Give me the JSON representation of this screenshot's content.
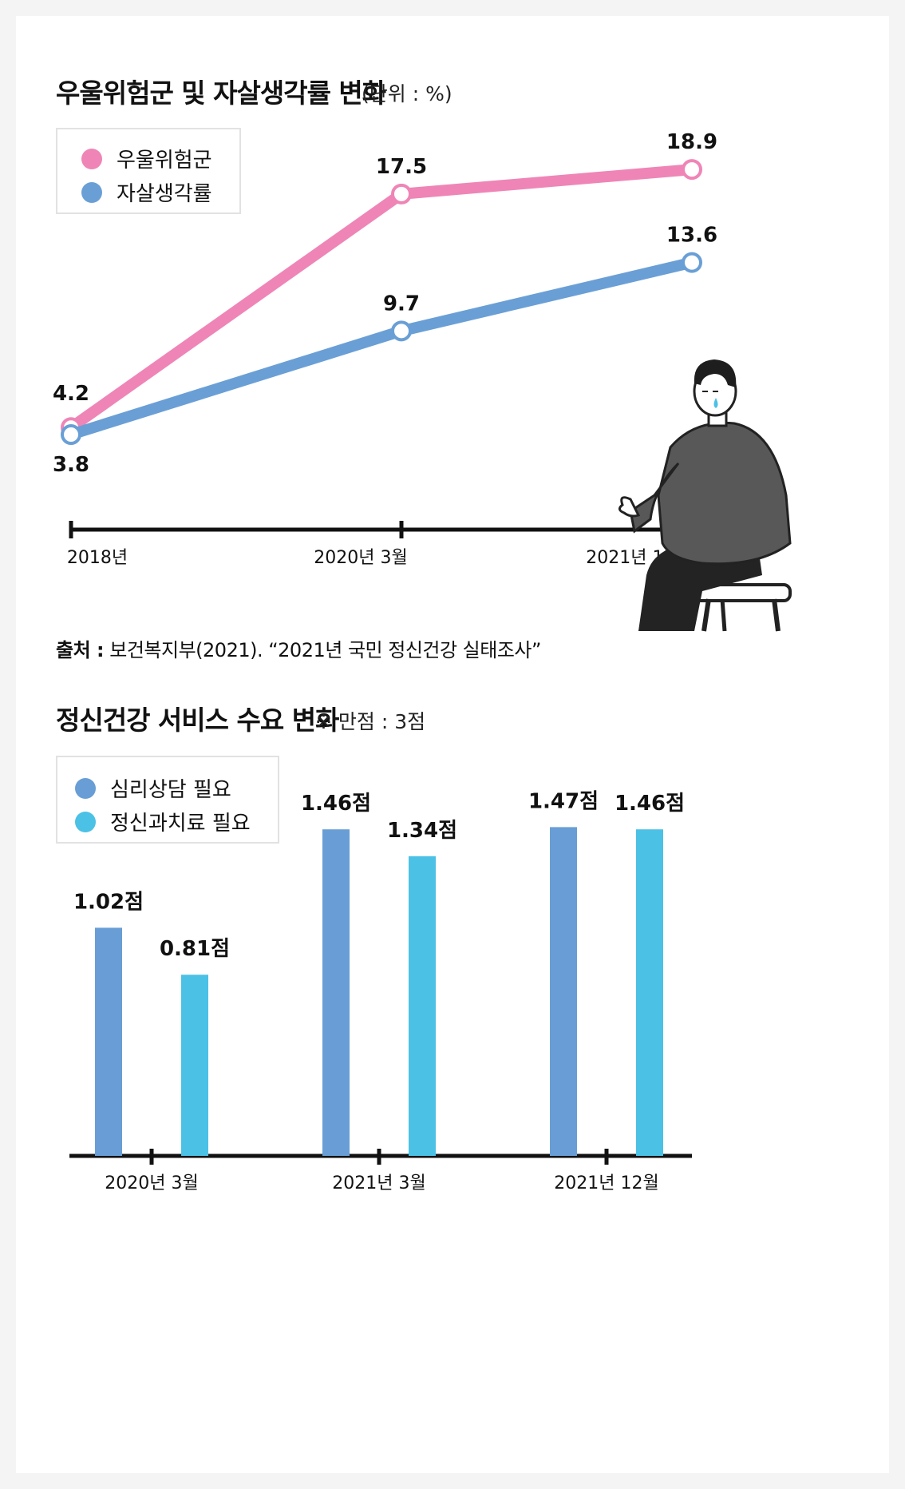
{
  "chart1": {
    "title": "우울위험군 및 자살생각률 변화",
    "unit": "(단위 : %)",
    "legend": [
      {
        "label": "우울위험군",
        "color": "#ef85b6"
      },
      {
        "label": "자살생각률",
        "color": "#6a9fd6"
      }
    ],
    "source_label": "출처 :",
    "source_text": "보건복지부(2021). “2021년 국민 정신건강 실태조사”",
    "illustration": "crying-seated-person"
  },
  "chart2": {
    "title": "정신건강 서비스 수요 변화",
    "unit": "※ 만점 : 3점",
    "legend": [
      {
        "label": "심리상담 필요",
        "color": "#689ed5"
      },
      {
        "label": "정신과치료 필요",
        "color": "#4bc1e6"
      }
    ]
  },
  "chart_data": [
    {
      "type": "line",
      "title": "우울위험군 및 자살생각률 변화",
      "unit": "%",
      "categories": [
        "2018년",
        "2020년 3월",
        "2021년 12월"
      ],
      "series": [
        {
          "name": "우울위험군",
          "values": [
            4.2,
            17.5,
            18.9
          ],
          "labels": [
            "4.2",
            "17.5",
            "18.9"
          ],
          "color": "#ef85b6"
        },
        {
          "name": "자살생각률",
          "values": [
            3.8,
            9.7,
            13.6
          ],
          "labels": [
            "3.8",
            "9.7",
            "13.6"
          ],
          "color": "#6a9fd6"
        }
      ],
      "legend_position": "top-left",
      "grid": false
    },
    {
      "type": "bar",
      "title": "정신건강 서비스 수요 변화",
      "categories": [
        "2020년 3월",
        "2021년 3월",
        "2021년 12월"
      ],
      "series": [
        {
          "name": "심리상담 필요",
          "values": [
            1.02,
            1.46,
            1.47
          ],
          "labels": [
            "1.02점",
            "1.46점",
            "1.47점"
          ],
          "color": "#689ed5"
        },
        {
          "name": "정신과치료 필요",
          "values": [
            0.81,
            1.34,
            1.46
          ],
          "labels": [
            "0.81점",
            "1.34점",
            "1.46점"
          ],
          "color": "#4bc1e6"
        }
      ],
      "ylim": [
        0,
        3
      ],
      "legend_position": "top-left",
      "grid": false
    }
  ]
}
